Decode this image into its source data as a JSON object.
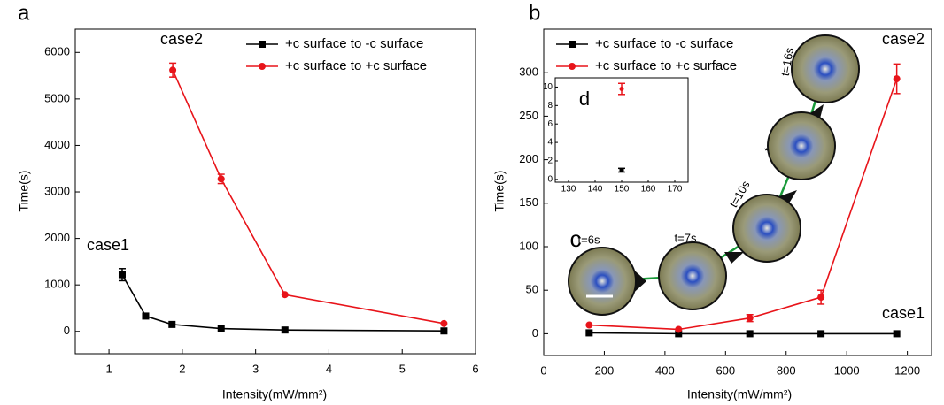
{
  "chart_data": [
    {
      "type": "line",
      "panel_label": "a",
      "x_label": "Intensity(mW/mm²)",
      "y_label": "Time(s)",
      "xlim": [
        0.54,
        6
      ],
      "ylim": [
        -480,
        6500
      ],
      "xticks": [
        1,
        2,
        3,
        4,
        5,
        6
      ],
      "yticks": [
        0,
        1000,
        2000,
        3000,
        4000,
        5000,
        6000
      ],
      "legend": "upper right",
      "annotations": [
        "case1",
        "case2"
      ],
      "series": [
        {
          "name": "+c surface to -c surface",
          "color": "#000000",
          "marker": "square",
          "x": [
            1.18,
            1.5,
            1.86,
            2.53,
            3.4,
            5.57
          ],
          "values": [
            1220,
            330,
            150,
            60,
            30,
            10
          ],
          "errors": [
            130,
            null,
            null,
            null,
            null,
            null
          ]
        },
        {
          "name": "+c surface to +c surface",
          "color": "#e8141a",
          "marker": "circle",
          "x": [
            1.87,
            2.53,
            3.4,
            5.57
          ],
          "values": [
            5620,
            3280,
            790,
            170
          ],
          "errors": [
            150,
            100,
            null,
            null
          ]
        }
      ]
    },
    {
      "type": "line",
      "panel_label": "b",
      "x_label": "Intensity(mW/mm²)",
      "y_label": "Time(s)",
      "xlim": [
        0,
        1280
      ],
      "ylim": [
        -25,
        350
      ],
      "xticks": [
        0,
        200,
        400,
        600,
        800,
        1000,
        1200
      ],
      "yticks": [
        0,
        50,
        100,
        150,
        200,
        250,
        300
      ],
      "legend": "upper left",
      "annotations": [
        "case2",
        "case1",
        "c",
        "t=6s",
        "t=7s",
        "t=10s",
        "t=15s",
        "t=16s",
        "100um"
      ],
      "series": [
        {
          "name": "+c surface to -c surface",
          "color": "#000000",
          "marker": "square",
          "x": [
            150,
            445,
            680,
            915,
            1165
          ],
          "values": [
            1,
            0,
            0,
            0,
            0
          ],
          "errors": [
            null,
            null,
            null,
            null,
            null
          ]
        },
        {
          "name": "+c surface to +c surface",
          "color": "#e8141a",
          "marker": "circle",
          "x": [
            150,
            445,
            680,
            915,
            1165
          ],
          "values": [
            10,
            5,
            18,
            42,
            293
          ],
          "errors": [
            null,
            null,
            4,
            8,
            17
          ]
        }
      ]
    },
    {
      "type": "scatter",
      "panel_label": "d",
      "xlim": [
        125,
        175
      ],
      "ylim": [
        -0.3,
        11
      ],
      "xticks": [
        130,
        140,
        150,
        160,
        170
      ],
      "yticks": [
        0,
        2,
        4,
        6,
        8,
        10
      ],
      "series": [
        {
          "color": "#000000",
          "marker": "square",
          "x": [
            150
          ],
          "values": [
            1
          ],
          "errors": [
            0.2
          ]
        },
        {
          "color": "#e8141a",
          "marker": "circle",
          "x": [
            150
          ],
          "values": [
            9.8
          ],
          "errors": [
            0.6
          ]
        }
      ]
    }
  ]
}
